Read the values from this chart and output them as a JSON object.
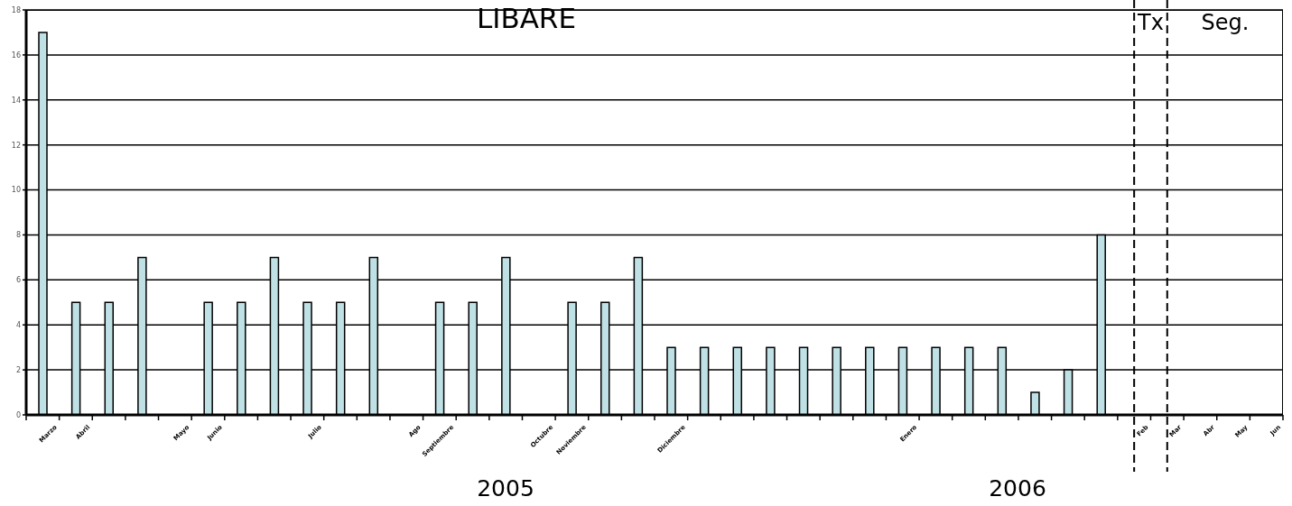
{
  "chart_data": {
    "type": "bar",
    "title": "LIBARE",
    "categories": [
      "Marzo",
      "Abril",
      null,
      null,
      "Mayo",
      "Junio",
      null,
      null,
      "Julio",
      null,
      null,
      "Ago",
      "Septiembre",
      null,
      null,
      "Octubre",
      "Noviembre",
      null,
      null,
      "Diciembre",
      null,
      null,
      null,
      null,
      null,
      null,
      "Enero",
      null,
      null,
      null,
      null,
      null,
      null,
      "Feb",
      "Mar",
      "Abr",
      "May",
      "Jun"
    ],
    "values": [
      17,
      5,
      5,
      7,
      null,
      5,
      5,
      7,
      5,
      5,
      7,
      null,
      5,
      5,
      7,
      null,
      5,
      5,
      7,
      3,
      3,
      3,
      3,
      3,
      3,
      3,
      3,
      3,
      3,
      3,
      1,
      2,
      8,
      null,
      null,
      null,
      null,
      null
    ],
    "color": "#bfe1e5",
    "ylim": [
      0,
      18
    ],
    "yticks": [
      0,
      2,
      4,
      6,
      8,
      10,
      12,
      14,
      16,
      18
    ],
    "grid": "y",
    "ref_lines": [
      {
        "axis": "x",
        "value": "Feb",
        "label": "Tx",
        "line_style": "dashed"
      },
      {
        "axis": "x",
        "value": "Mar",
        "label": "Seg.",
        "line_style": "dashed"
      }
    ],
    "annotations": [
      "2005",
      "2006"
    ]
  }
}
